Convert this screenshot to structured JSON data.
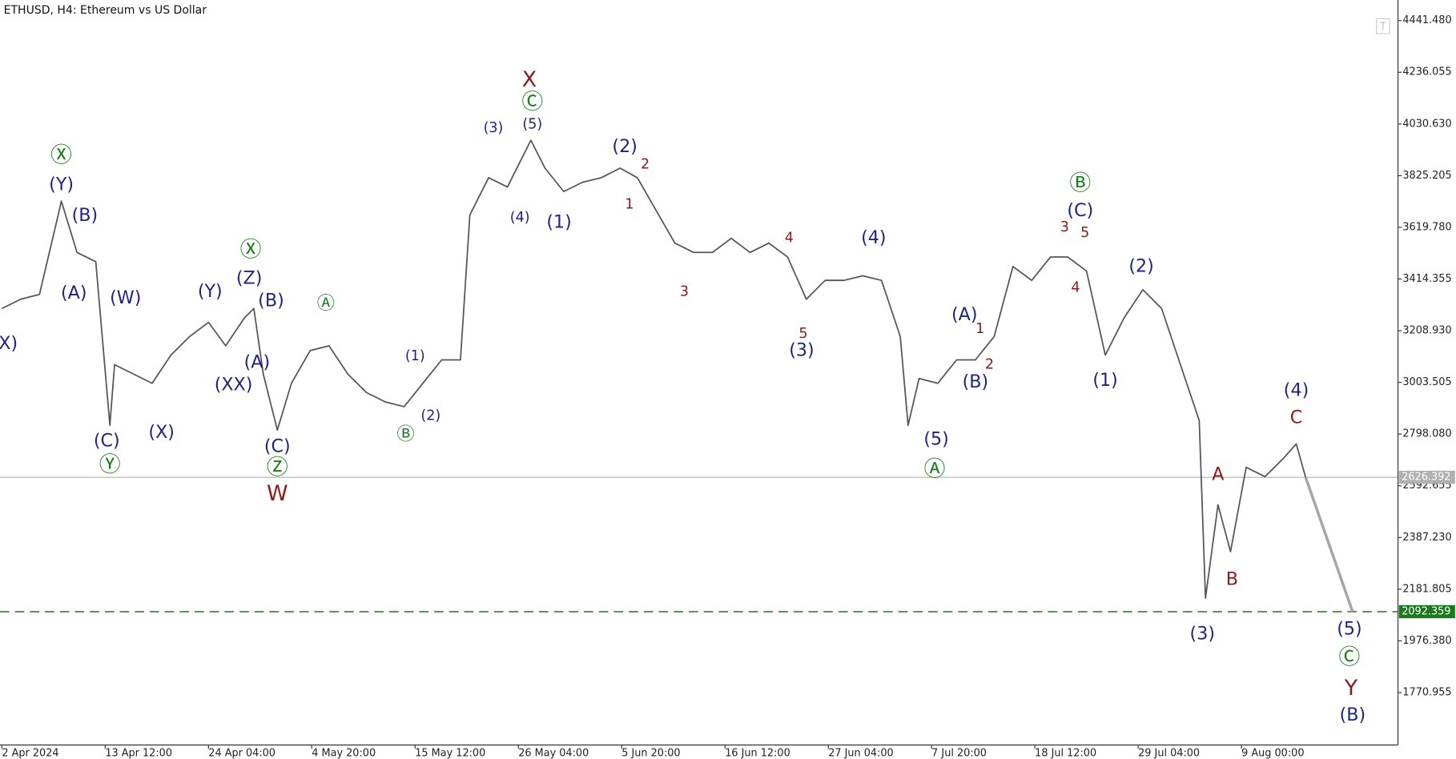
{
  "chart_data": {
    "type": "line",
    "title": "ETHUSD, H4:  Ethereum vs US Dollar",
    "xlim": [
      -1.2,
      892
    ],
    "ylim": [
      1562.6,
      4523.2
    ],
    "xticks": [
      {
        "value": 0,
        "label": "2 Apr 2024"
      },
      {
        "value": 66,
        "label": "13 Apr 12:00"
      },
      {
        "value": 132,
        "label": "24 Apr 04:00"
      },
      {
        "value": 198,
        "label": "4 May 20:00"
      },
      {
        "value": 264,
        "label": "15 May 12:00"
      },
      {
        "value": 330,
        "label": "26 May 04:00"
      },
      {
        "value": 396,
        "label": "5 Jun 20:00"
      },
      {
        "value": 462,
        "label": "16 Jun 12:00"
      },
      {
        "value": 528,
        "label": "27 Jun 04:00"
      },
      {
        "value": 594,
        "label": "7 Jul 20:00"
      },
      {
        "value": 660,
        "label": "18 Jul 12:00"
      },
      {
        "value": 726,
        "label": "29 Jul 04:00"
      },
      {
        "value": 792,
        "label": "9 Aug 00:00"
      }
    ],
    "yticks": [
      {
        "value": 4441.48,
        "label": "4441.480"
      },
      {
        "value": 4236.055,
        "label": "4236.055"
      },
      {
        "value": 4030.63,
        "label": "4030.630"
      },
      {
        "value": 3825.205,
        "label": "3825.205"
      },
      {
        "value": 3619.78,
        "label": "3619.780"
      },
      {
        "value": 3414.355,
        "label": "3414.355"
      },
      {
        "value": 3208.93,
        "label": "3208.930"
      },
      {
        "value": 3003.505,
        "label": "3003.505"
      },
      {
        "value": 2798.08,
        "label": "2798.080"
      },
      {
        "value": 2592.655,
        "label": "2592.655"
      },
      {
        "value": 2387.23,
        "label": "2387.230"
      },
      {
        "value": 2181.805,
        "label": "2181.805"
      },
      {
        "value": 1976.38,
        "label": "1976.380"
      },
      {
        "value": 1770.955,
        "label": "1770.955"
      }
    ],
    "series": [
      {
        "color": "#555555",
        "width": 1.5,
        "x": [
          0,
          12,
          24,
          36,
          38,
          48,
          60,
          69,
          72,
          84,
          96,
          108,
          120,
          132,
          143,
          155,
          161,
          167,
          176,
          185,
          197,
          209,
          221,
          233,
          245,
          257,
          269,
          281,
          293,
          299,
          311,
          323,
          338,
          347,
          359,
          371,
          383,
          395,
          406,
          418,
          430,
          442,
          454,
          466,
          478,
          490,
          502,
          514,
          526,
          538,
          550,
          562,
          574,
          579,
          586,
          598,
          610,
          622,
          634,
          646,
          658,
          670,
          681,
          693,
          705,
          717,
          729,
          741,
          753,
          765,
          769,
          777,
          785,
          795,
          807,
          819,
          827,
          833
        ],
        "values": [
          3297,
          3334,
          3353,
          3669,
          3724,
          3520,
          3483,
          2833,
          3074,
          3037,
          3000,
          3112,
          3186,
          3242,
          3149,
          3260,
          3297,
          3037,
          2814,
          3000,
          3130,
          3149,
          3037,
          2963,
          2926,
          2907,
          3000,
          3093,
          3093,
          3669,
          3817,
          3780,
          3966,
          3855,
          3762,
          3799,
          3817,
          3855,
          3817,
          3687,
          3557,
          3520,
          3520,
          3576,
          3520,
          3557,
          3502,
          3334,
          3409,
          3409,
          3427,
          3409,
          3186,
          2833,
          3019,
          3000,
          3093,
          3093,
          3186,
          3464,
          3409,
          3502,
          3502,
          3446,
          3112,
          3260,
          3372,
          3297,
          3074,
          2852,
          2146,
          2517,
          2331,
          2666,
          2629,
          2703,
          2759,
          2626
        ]
      },
      {
        "color": "#a6a6a6",
        "width": 3,
        "x": [
          833,
          863
        ],
        "values": [
          2626.392,
          2092.359
        ]
      }
    ],
    "price_lines": [
      {
        "value": 2626.392,
        "color": "#b0b0b0",
        "style": "solid"
      },
      {
        "value": 2092.359,
        "color": "#1a7a1a",
        "style": "dashed"
      }
    ],
    "annotations": [
      {
        "text": "Ⓧ",
        "x": 38,
        "y": 3903,
        "color": "#1a7a1a",
        "size": "large"
      },
      {
        "text": "(Y)",
        "x": 38,
        "y": 3788,
        "color": "#1c2680",
        "size": "medium"
      },
      {
        "text": "(B)",
        "x": 53,
        "y": 3665,
        "color": "#1c2680",
        "size": "medium"
      },
      {
        "text": "(A)",
        "x": 46,
        "y": 3357,
        "color": "#1c2680",
        "size": "medium"
      },
      {
        "text": "(W)",
        "x": 79,
        "y": 3338,
        "color": "#1c2680",
        "size": "medium"
      },
      {
        "text": "(C)",
        "x": 67,
        "y": 2770,
        "color": "#1c2680",
        "size": "medium"
      },
      {
        "text": "Ⓨ",
        "x": 69,
        "y": 2673,
        "color": "#1a7a1a",
        "size": "large"
      },
      {
        "text": "(X)",
        "x": 102,
        "y": 2803,
        "color": "#1c2680",
        "size": "medium"
      },
      {
        "text": "X)",
        "x": 4,
        "y": 3156,
        "color": "#1c2680",
        "size": "medium"
      },
      {
        "text": "(Y)",
        "x": 133,
        "y": 3364,
        "color": "#1c2680",
        "size": "medium"
      },
      {
        "text": "(Z)",
        "x": 158,
        "y": 3416,
        "color": "#1c2680",
        "size": "medium"
      },
      {
        "text": "Ⓧ",
        "x": 159,
        "y": 3528,
        "color": "#1a7a1a",
        "size": "large"
      },
      {
        "text": "(B)",
        "x": 172,
        "y": 3327,
        "color": "#1c2680",
        "size": "medium"
      },
      {
        "text": "(A)",
        "x": 163,
        "y": 3082,
        "color": "#1c2680",
        "size": "medium"
      },
      {
        "text": "(XX)",
        "x": 148,
        "y": 2993,
        "color": "#1c2680",
        "size": "medium"
      },
      {
        "text": "(C)",
        "x": 176,
        "y": 2748,
        "color": "#1c2680",
        "size": "medium"
      },
      {
        "text": "Ⓩ",
        "x": 176,
        "y": 2662,
        "color": "#1a7a1a",
        "size": "large"
      },
      {
        "text": "W",
        "x": 176,
        "y": 2558,
        "color": "#8b1a1a",
        "size": "large"
      },
      {
        "text": "Ⓐ",
        "x": 207,
        "y": 3316,
        "color": "#1a7a1a",
        "size": "medium"
      },
      {
        "text": "(1)",
        "x": 264,
        "y": 3108,
        "color": "#1c2680",
        "size": "small"
      },
      {
        "text": "(2)",
        "x": 274,
        "y": 2870,
        "color": "#1c2680",
        "size": "small"
      },
      {
        "text": "Ⓑ",
        "x": 258,
        "y": 2796,
        "color": "#1a7a1a",
        "size": "medium"
      },
      {
        "text": "(3)",
        "x": 314,
        "y": 4014,
        "color": "#1c2680",
        "size": "small"
      },
      {
        "text": "(5)",
        "x": 339,
        "y": 4029,
        "color": "#1c2680",
        "size": "small"
      },
      {
        "text": "Ⓒ",
        "x": 339,
        "y": 4115,
        "color": "#1a7a1a",
        "size": "large"
      },
      {
        "text": "X",
        "x": 337,
        "y": 4204,
        "color": "#8b1a1a",
        "size": "large"
      },
      {
        "text": "(4)",
        "x": 331,
        "y": 3658,
        "color": "#1c2680",
        "size": "small"
      },
      {
        "text": "(1)",
        "x": 356,
        "y": 3639,
        "color": "#1c2680",
        "size": "medium"
      },
      {
        "text": "(2)",
        "x": 398,
        "y": 3940,
        "color": "#1c2680",
        "size": "medium"
      },
      {
        "text": "2",
        "x": 411,
        "y": 3869,
        "color": "#8b1a1a",
        "size": "small"
      },
      {
        "text": "1",
        "x": 401,
        "y": 3710,
        "color": "#8b1a1a",
        "size": "small"
      },
      {
        "text": "3",
        "x": 436,
        "y": 3364,
        "color": "#8b1a1a",
        "size": "small"
      },
      {
        "text": "4",
        "x": 503,
        "y": 3576,
        "color": "#8b1a1a",
        "size": "small"
      },
      {
        "text": "5",
        "x": 512,
        "y": 3197,
        "color": "#8b1a1a",
        "size": "small"
      },
      {
        "text": "(3)",
        "x": 511,
        "y": 3130,
        "color": "#1c2680",
        "size": "medium"
      },
      {
        "text": "(4)",
        "x": 557,
        "y": 3576,
        "color": "#1c2680",
        "size": "medium"
      },
      {
        "text": "(5)",
        "x": 597,
        "y": 2777,
        "color": "#1c2680",
        "size": "medium"
      },
      {
        "text": "Ⓐ",
        "x": 596,
        "y": 2655,
        "color": "#1a7a1a",
        "size": "large"
      },
      {
        "text": "(A)",
        "x": 615,
        "y": 3271,
        "color": "#1c2680",
        "size": "medium"
      },
      {
        "text": "1",
        "x": 625,
        "y": 3216,
        "color": "#8b1a1a",
        "size": "small"
      },
      {
        "text": "2",
        "x": 631,
        "y": 3074,
        "color": "#8b1a1a",
        "size": "small"
      },
      {
        "text": "(B)",
        "x": 622,
        "y": 3004,
        "color": "#1c2680",
        "size": "medium"
      },
      {
        "text": "Ⓑ",
        "x": 689,
        "y": 3791,
        "color": "#1a7a1a",
        "size": "large"
      },
      {
        "text": "(C)",
        "x": 689,
        "y": 3684,
        "color": "#1c2680",
        "size": "medium"
      },
      {
        "text": "3",
        "x": 679,
        "y": 3620,
        "color": "#8b1a1a",
        "size": "small"
      },
      {
        "text": "5",
        "x": 692,
        "y": 3598,
        "color": "#8b1a1a",
        "size": "small"
      },
      {
        "text": "4",
        "x": 686,
        "y": 3379,
        "color": "#8b1a1a",
        "size": "small"
      },
      {
        "text": "(2)",
        "x": 728,
        "y": 3464,
        "color": "#1c2680",
        "size": "medium"
      },
      {
        "text": "(1)",
        "x": 705,
        "y": 3011,
        "color": "#1c2680",
        "size": "medium"
      },
      {
        "text": "(4)",
        "x": 827,
        "y": 2970,
        "color": "#1c2680",
        "size": "medium"
      },
      {
        "text": "C",
        "x": 827,
        "y": 2863,
        "color": "#8b1a1a",
        "size": "medium"
      },
      {
        "text": "A",
        "x": 777,
        "y": 2636,
        "color": "#8b1a1a",
        "size": "medium"
      },
      {
        "text": "B",
        "x": 786,
        "y": 2220,
        "color": "#8b1a1a",
        "size": "medium"
      },
      {
        "text": "(3)",
        "x": 767,
        "y": 2004,
        "color": "#1c2680",
        "size": "medium"
      },
      {
        "text": "(5)",
        "x": 861,
        "y": 2023,
        "color": "#1c2680",
        "size": "medium"
      },
      {
        "text": "Ⓒ",
        "x": 861,
        "y": 1908,
        "color": "#1a7a1a",
        "size": "large"
      },
      {
        "text": "Y",
        "x": 862,
        "y": 1785,
        "color": "#8b1a1a",
        "size": "large"
      },
      {
        "text": "(B)",
        "x": 863,
        "y": 1681,
        "color": "#1c2680",
        "size": "medium"
      }
    ]
  }
}
